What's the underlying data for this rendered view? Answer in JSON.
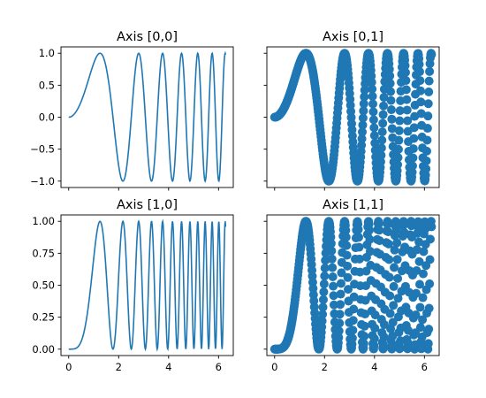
{
  "colors": {
    "series": "#1f77b4",
    "frame": "#000000",
    "background": "#ffffff"
  },
  "chart_data": [
    {
      "type": "line",
      "title": "Axis [0,0]",
      "function": "sin(x^2)",
      "x_range": [
        0,
        6.2832
      ],
      "xlim": [
        -0.31,
        6.59
      ],
      "ylim": [
        -1.1,
        1.1
      ],
      "yticks": [
        1.0,
        0.5,
        0.0,
        -0.5,
        -1.0
      ],
      "ytick_labels": [
        "1.0",
        "0.5",
        "0.0",
        "−0.5",
        "−1.0"
      ],
      "xticks": [
        0,
        2,
        4,
        6
      ],
      "xtick_labels_visible": false,
      "grid": false
    },
    {
      "type": "scatter",
      "title": "Axis [0,1]",
      "function": "sin(x^2)",
      "x_range": [
        0,
        6.2832
      ],
      "xlim": [
        -0.31,
        6.59
      ],
      "ylim": [
        -1.1,
        1.1
      ],
      "yticks": [
        1.0,
        0.5,
        0.0,
        -0.5,
        -1.0
      ],
      "ytick_labels_visible": false,
      "xticks": [
        0,
        2,
        4,
        6
      ],
      "xtick_labels_visible": false,
      "grid": false
    },
    {
      "type": "line",
      "title": "Axis [1,0]",
      "function": "sin(x^2)^2",
      "x_range": [
        0,
        6.2832
      ],
      "xlim": [
        -0.31,
        6.59
      ],
      "ylim": [
        -0.05,
        1.05
      ],
      "yticks": [
        1.0,
        0.75,
        0.5,
        0.25,
        0.0
      ],
      "ytick_labels": [
        "1.00",
        "0.75",
        "0.50",
        "0.25",
        "0.00"
      ],
      "xticks": [
        0,
        2,
        4,
        6
      ],
      "xtick_labels": [
        "0",
        "2",
        "4",
        "6"
      ],
      "grid": false
    },
    {
      "type": "scatter",
      "title": "Axis [1,1]",
      "function": "sin(x^2)^2",
      "x_range": [
        0,
        6.2832
      ],
      "xlim": [
        -0.31,
        6.59
      ],
      "ylim": [
        -0.05,
        1.05
      ],
      "yticks": [
        1.0,
        0.75,
        0.5,
        0.25,
        0.0
      ],
      "ytick_labels_visible": false,
      "xticks": [
        0,
        2,
        4,
        6
      ],
      "xtick_labels": [
        "0",
        "2",
        "4",
        "6"
      ],
      "grid": false
    }
  ]
}
